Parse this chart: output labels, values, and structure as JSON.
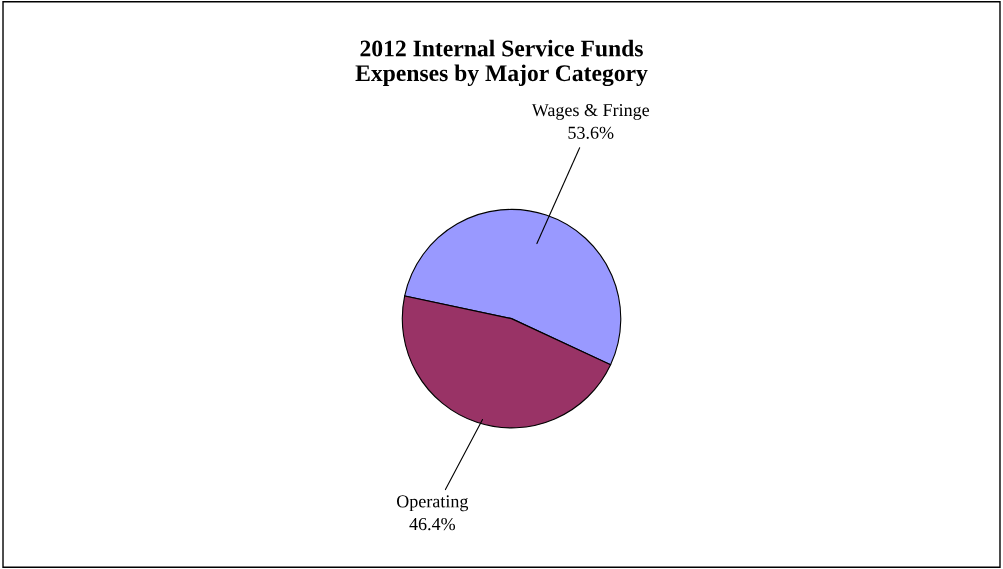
{
  "chart_data": {
    "type": "pie",
    "title": "2012 Internal Service Funds\nExpenses by Major Category",
    "categories": [
      "Wages & Fringe",
      "Operating"
    ],
    "values": [
      53.6,
      46.4
    ],
    "colors": [
      "#9999ff",
      "#993366"
    ],
    "value_labels": [
      "53.6%",
      "46.4%"
    ]
  }
}
